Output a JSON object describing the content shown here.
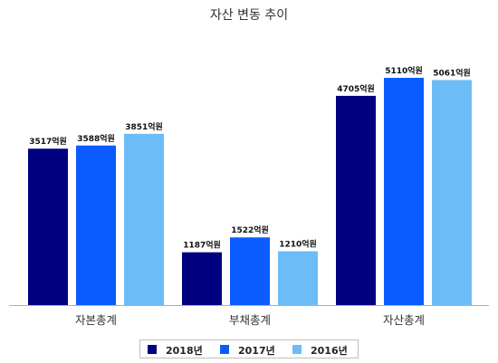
{
  "chart_data": {
    "type": "bar",
    "title": "자산 변동 추이",
    "categories": [
      "자본총계",
      "부채총계",
      "자산총계"
    ],
    "series": [
      {
        "name": "2018년",
        "color": "#000080",
        "values": [
          3517,
          1187,
          4705
        ],
        "labels": [
          "3517억원",
          "1187억원",
          "4705억원"
        ]
      },
      {
        "name": "2017년",
        "color": "#0a5cff",
        "values": [
          3588,
          1522,
          5110
        ],
        "labels": [
          "3588억원",
          "1522억원",
          "5110억원"
        ]
      },
      {
        "name": "2016년",
        "color": "#6cbcf7",
        "values": [
          3851,
          1210,
          5061
        ],
        "labels": [
          "3851억원",
          "1210억원",
          "5061억원"
        ]
      }
    ],
    "ylim": [
      0,
      5110
    ],
    "grid": false,
    "legend_position": "bottom"
  }
}
